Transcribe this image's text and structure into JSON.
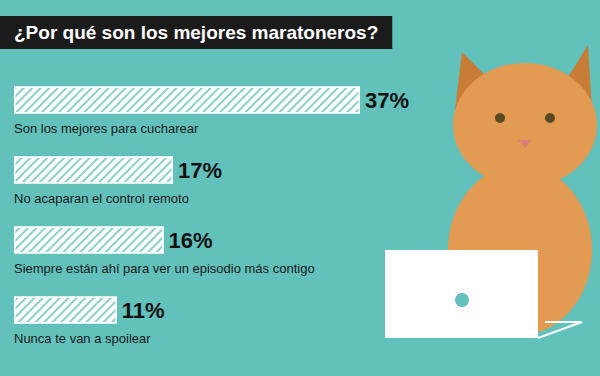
{
  "chart_data": {
    "type": "bar",
    "orientation": "horizontal",
    "title": "¿Por qué son los mejores maratoneros?",
    "categories": [
      "Son los mejores para cucharear",
      "No acaparan el control remoto",
      "Siempre están ahí para ver un episodio más contigo",
      "Nunca te van a spoilear"
    ],
    "values": [
      37,
      17,
      16,
      11
    ],
    "value_labels": [
      "37%",
      "17%",
      "16%",
      "11%"
    ],
    "color": "#ffffff",
    "xlim": [
      0,
      40
    ],
    "grid": false,
    "data_labels": true,
    "tick_labels": "y"
  }
}
